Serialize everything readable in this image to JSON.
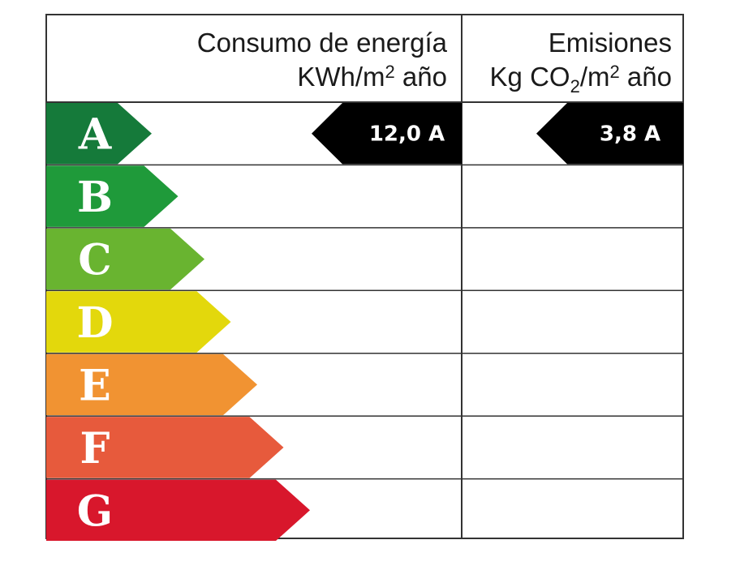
{
  "header": {
    "energy_line1": "Consumo de energía",
    "energy_line2_pre": "KWh/m",
    "energy_line2_sup": "2",
    "energy_line2_post": " año",
    "emissions_line1": "Emisiones",
    "emissions_line2_pre": "Kg CO",
    "emissions_line2_sub": "2",
    "emissions_line2_mid": "/m",
    "emissions_line2_sup": "2",
    "emissions_line2_post": " año"
  },
  "classes": [
    {
      "letter": "A",
      "color": "#157a3a"
    },
    {
      "letter": "B",
      "color": "#1f9a3a"
    },
    {
      "letter": "C",
      "color": "#69b430"
    },
    {
      "letter": "D",
      "color": "#e3d80c"
    },
    {
      "letter": "E",
      "color": "#f19332"
    },
    {
      "letter": "F",
      "color": "#e75a3c"
    },
    {
      "letter": "G",
      "color": "#d8172c"
    }
  ],
  "ratings": {
    "energy": {
      "value": "12,0 A",
      "class": "A",
      "color": "#000000"
    },
    "emissions": {
      "value": "3,8 A",
      "class": "A",
      "color": "#000000"
    }
  }
}
